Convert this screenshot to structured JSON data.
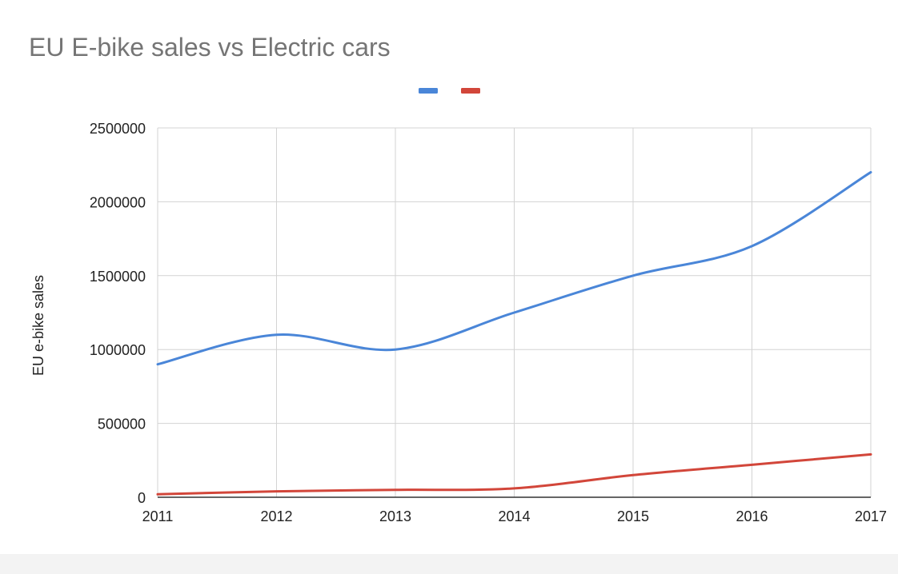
{
  "chart_data": {
    "type": "line",
    "title": "EU E-bike sales vs Electric cars",
    "xlabel": "",
    "ylabel": "EU e-bike sales",
    "x": [
      2011,
      2012,
      2013,
      2014,
      2015,
      2016,
      2017
    ],
    "x_ticks": [
      "2011",
      "2012",
      "2013",
      "2014",
      "2015",
      "2016",
      "2017"
    ],
    "y_ticks": [
      "0",
      "500000",
      "1000000",
      "1500000",
      "2000000",
      "2500000"
    ],
    "xlim": [
      2011,
      2017
    ],
    "ylim": [
      0,
      2500000
    ],
    "grid": true,
    "legend": "top-center",
    "series": [
      {
        "color": "#4a86d8",
        "values": [
          900000,
          1100000,
          1000000,
          1250000,
          1500000,
          1700000,
          2200000
        ]
      },
      {
        "color": "#d2463a",
        "values": [
          20000,
          40000,
          50000,
          60000,
          150000,
          220000,
          290000
        ]
      }
    ]
  }
}
